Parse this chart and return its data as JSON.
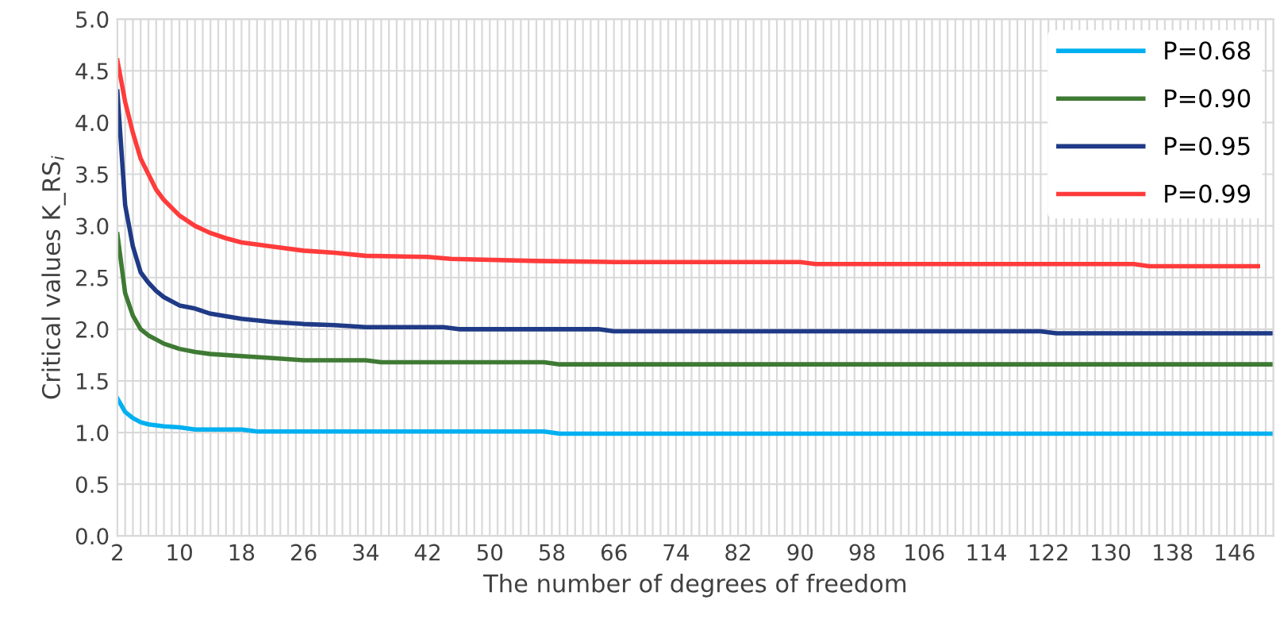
{
  "chart_data": {
    "type": "line",
    "xlabel": "The number of degrees of freedom",
    "ylabel": "Critical values K_RS$_{i}$",
    "xlim": [
      2,
      151
    ],
    "ylim": [
      0,
      5
    ],
    "yticks": [
      {
        "value": 0,
        "label": "0.0"
      },
      {
        "value": 0.5,
        "label": "0.5"
      },
      {
        "value": 1,
        "label": "1.0"
      },
      {
        "value": 1.5,
        "label": "1.5"
      },
      {
        "value": 2,
        "label": "2.0"
      },
      {
        "value": 2.5,
        "label": "2.5"
      },
      {
        "value": 3,
        "label": "3.0"
      },
      {
        "value": 3.5,
        "label": "3.5"
      },
      {
        "value": 4,
        "label": "4.0"
      },
      {
        "value": 4.5,
        "label": "4.5"
      },
      {
        "value": 5,
        "label": "5.0"
      }
    ],
    "xticks": [
      2,
      {
        "value": 3,
        "label": null
      },
      {
        "value": 4,
        "label": null
      },
      {
        "value": 5,
        "label": null
      },
      {
        "value": 6,
        "label": null
      },
      {
        "value": 7,
        "label": null
      },
      {
        "value": 8,
        "label": null
      },
      {
        "value": 9,
        "label": null
      },
      10,
      {
        "value": 11,
        "label": null
      },
      {
        "value": 12,
        "label": null
      },
      {
        "value": 13,
        "label": null
      },
      {
        "value": 14,
        "label": null
      },
      {
        "value": 15,
        "label": null
      },
      {
        "value": 16,
        "label": null
      },
      {
        "value": 17,
        "label": null
      },
      18,
      {
        "value": 19,
        "label": null
      },
      {
        "value": 20,
        "label": null
      },
      {
        "value": 21,
        "label": null
      },
      {
        "value": 22,
        "label": null
      },
      {
        "value": 23,
        "label": null
      },
      {
        "value": 24,
        "label": null
      },
      {
        "value": 25,
        "label": null
      },
      26,
      {
        "value": 27,
        "label": null
      },
      {
        "value": 28,
        "label": null
      },
      {
        "value": 29,
        "label": null
      },
      {
        "value": 30,
        "label": null
      },
      {
        "value": 31,
        "label": null
      },
      {
        "value": 32,
        "label": null
      },
      {
        "value": 33,
        "label": null
      },
      34,
      {
        "value": 35,
        "label": null
      },
      {
        "value": 36,
        "label": null
      },
      {
        "value": 37,
        "label": null
      },
      {
        "value": 38,
        "label": null
      },
      {
        "value": 39,
        "label": null
      },
      {
        "value": 40,
        "label": null
      },
      {
        "value": 41,
        "label": null
      },
      42,
      {
        "value": 43,
        "label": null
      },
      {
        "value": 44,
        "label": null
      },
      {
        "value": 45,
        "label": null
      },
      {
        "value": 46,
        "label": null
      },
      {
        "value": 47,
        "label": null
      },
      {
        "value": 48,
        "label": null
      },
      {
        "value": 49,
        "label": null
      },
      50,
      {
        "value": 51,
        "label": null
      },
      {
        "value": 52,
        "label": null
      },
      {
        "value": 53,
        "label": null
      },
      {
        "value": 54,
        "label": null
      },
      {
        "value": 55,
        "label": null
      },
      {
        "value": 56,
        "label": null
      },
      {
        "value": 57,
        "label": null
      },
      58,
      {
        "value": 59,
        "label": null
      },
      {
        "value": 60,
        "label": null
      },
      {
        "value": 61,
        "label": null
      },
      {
        "value": 62,
        "label": null
      },
      {
        "value": 63,
        "label": null
      },
      {
        "value": 64,
        "label": null
      },
      {
        "value": 65,
        "label": null
      },
      66,
      {
        "value": 67,
        "label": null
      },
      {
        "value": 68,
        "label": null
      },
      {
        "value": 69,
        "label": null
      },
      {
        "value": 70,
        "label": null
      },
      {
        "value": 71,
        "label": null
      },
      {
        "value": 72,
        "label": null
      },
      {
        "value": 73,
        "label": null
      },
      74,
      {
        "value": 75,
        "label": null
      },
      {
        "value": 76,
        "label": null
      },
      {
        "value": 77,
        "label": null
      },
      {
        "value": 78,
        "label": null
      },
      {
        "value": 79,
        "label": null
      },
      {
        "value": 80,
        "label": null
      },
      {
        "value": 81,
        "label": null
      },
      82,
      {
        "value": 83,
        "label": null
      },
      {
        "value": 84,
        "label": null
      },
      {
        "value": 85,
        "label": null
      },
      {
        "value": 86,
        "label": null
      },
      {
        "value": 87,
        "label": null
      },
      {
        "value": 88,
        "label": null
      },
      {
        "value": 89,
        "label": null
      },
      90,
      {
        "value": 91,
        "label": null
      },
      {
        "value": 92,
        "label": null
      },
      {
        "value": 93,
        "label": null
      },
      {
        "value": 94,
        "label": null
      },
      {
        "value": 95,
        "label": null
      },
      {
        "value": 96,
        "label": null
      },
      {
        "value": 97,
        "label": null
      },
      98,
      {
        "value": 99,
        "label": null
      },
      {
        "value": 100,
        "label": null
      },
      {
        "value": 101,
        "label": null
      },
      {
        "value": 102,
        "label": null
      },
      {
        "value": 103,
        "label": null
      },
      {
        "value": 104,
        "label": null
      },
      {
        "value": 105,
        "label": null
      },
      106,
      {
        "value": 107,
        "label": null
      },
      {
        "value": 108,
        "label": null
      },
      {
        "value": 109,
        "label": null
      },
      {
        "value": 110,
        "label": null
      },
      {
        "value": 111,
        "label": null
      },
      {
        "value": 112,
        "label": null
      },
      {
        "value": 113,
        "label": null
      },
      114,
      {
        "value": 115,
        "label": null
      },
      {
        "value": 116,
        "label": null
      },
      {
        "value": 117,
        "label": null
      },
      {
        "value": 118,
        "label": null
      },
      {
        "value": 119,
        "label": null
      },
      {
        "value": 120,
        "label": null
      },
      {
        "value": 121,
        "label": null
      },
      122,
      {
        "value": 123,
        "label": null
      },
      {
        "value": 124,
        "label": null
      },
      {
        "value": 125,
        "label": null
      },
      {
        "value": 126,
        "label": null
      },
      {
        "value": 127,
        "label": null
      },
      {
        "value": 128,
        "label": null
      },
      {
        "value": 129,
        "label": null
      },
      130,
      {
        "value": 131,
        "label": null
      },
      {
        "value": 132,
        "label": null
      },
      {
        "value": 133,
        "label": null
      },
      {
        "value": 134,
        "label": null
      },
      {
        "value": 135,
        "label": null
      },
      {
        "value": 136,
        "label": null
      },
      {
        "value": 137,
        "label": null
      },
      138,
      {
        "value": 139,
        "label": null
      },
      {
        "value": 140,
        "label": null
      },
      {
        "value": 141,
        "label": null
      },
      {
        "value": 142,
        "label": null
      },
      {
        "value": 143,
        "label": null
      },
      {
        "value": 144,
        "label": null
      },
      {
        "value": 145,
        "label": null
      },
      146,
      {
        "value": 147,
        "label": null
      },
      {
        "value": 148,
        "label": null
      },
      {
        "value": 149,
        "label": null
      },
      {
        "value": 150,
        "label": null
      },
      {
        "value": 151,
        "label": null
      }
    ],
    "grid": true,
    "legend": "top right",
    "marker": "none",
    "line_style": "solid",
    "series": [
      {
        "name": "P=0.68",
        "color": "#00b0f0",
        "x": [
          2,
          3,
          4,
          5,
          6,
          8,
          10,
          12,
          18,
          20,
          57,
          59,
          151
        ],
        "values": [
          1.33,
          1.2,
          1.14,
          1.1,
          1.08,
          1.06,
          1.05,
          1.03,
          1.03,
          1.01,
          1.01,
          0.99,
          0.99
        ]
      },
      {
        "name": "P=0.90",
        "color": "#3f7a34",
        "x": [
          2,
          3,
          4,
          5,
          6,
          7,
          8,
          10,
          12,
          14,
          18,
          22,
          26,
          34,
          36,
          57,
          59,
          151
        ],
        "values": [
          2.92,
          2.35,
          2.13,
          2.0,
          1.94,
          1.9,
          1.86,
          1.81,
          1.78,
          1.76,
          1.74,
          1.72,
          1.7,
          1.7,
          1.68,
          1.68,
          1.66,
          1.66
        ]
      },
      {
        "name": "P=0.95",
        "color": "#1f3a86",
        "x": [
          2,
          3,
          4,
          5,
          6,
          7,
          8,
          10,
          12,
          14,
          18,
          22,
          26,
          30,
          34,
          44,
          46,
          64,
          66,
          121,
          123,
          151
        ],
        "values": [
          4.3,
          3.2,
          2.8,
          2.55,
          2.45,
          2.37,
          2.31,
          2.23,
          2.2,
          2.15,
          2.1,
          2.07,
          2.05,
          2.04,
          2.02,
          2.02,
          2.0,
          2.0,
          1.98,
          1.98,
          1.96,
          1.96
        ]
      },
      {
        "name": "P=0.99",
        "color": "#ff3b3b",
        "x": [
          2,
          3,
          4,
          5,
          6,
          7,
          8,
          10,
          12,
          14,
          16,
          18,
          22,
          26,
          30,
          34,
          42,
          45,
          56,
          66,
          90,
          92,
          133,
          135,
          149
        ],
        "values": [
          4.6,
          4.2,
          3.9,
          3.65,
          3.5,
          3.35,
          3.25,
          3.1,
          3.0,
          2.93,
          2.88,
          2.84,
          2.8,
          2.76,
          2.74,
          2.71,
          2.7,
          2.68,
          2.66,
          2.65,
          2.65,
          2.63,
          2.63,
          2.61,
          2.61
        ]
      }
    ]
  }
}
